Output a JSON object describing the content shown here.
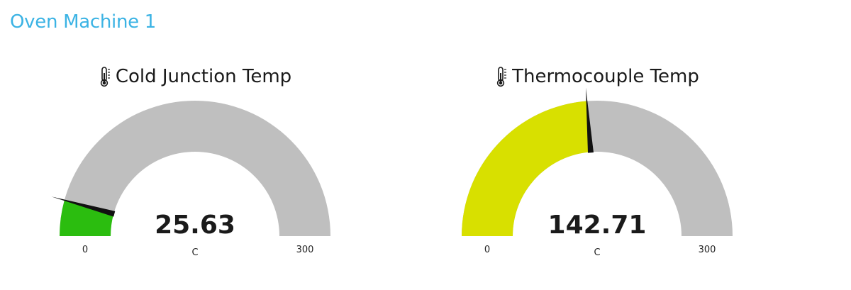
{
  "page": {
    "title": "Oven Machine 1"
  },
  "colors": {
    "title": "#3bb3e4",
    "track": "#bfbfbf",
    "needle": "#111111"
  },
  "gauges": [
    {
      "icon": "thermometer-icon",
      "title": "Cold Junction Temp",
      "value_text": "25.63",
      "unit": "C",
      "min_label": "0",
      "max_label": "300",
      "fill_color": "#2bbd0f",
      "value": 25.63,
      "min": 0,
      "max": 300
    },
    {
      "icon": "thermometer-icon",
      "title": "Thermocouple Temp",
      "value_text": "142.71",
      "unit": "C",
      "min_label": "0",
      "max_label": "300",
      "fill_color": "#d8e000",
      "value": 142.71,
      "min": 0,
      "max": 300
    }
  ]
}
